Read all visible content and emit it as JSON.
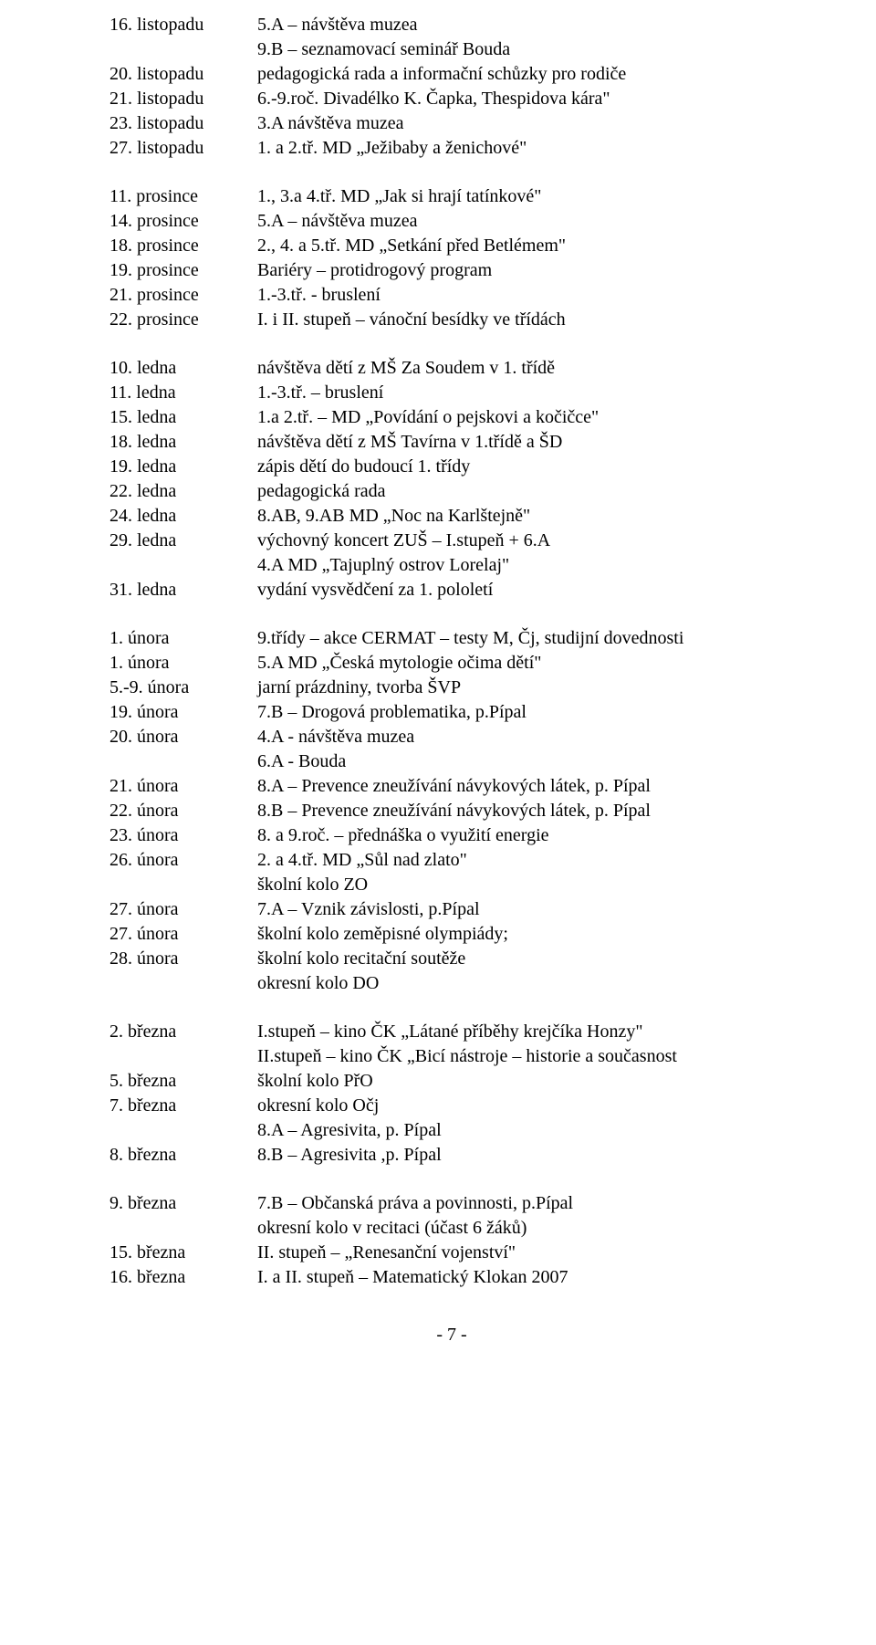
{
  "blocks": [
    {
      "rows": [
        {
          "date": "16. listopadu",
          "desc": "5.A – návštěva muzea"
        },
        {
          "date": "",
          "desc": "9.B – seznamovací seminář Bouda"
        },
        {
          "date": "20. listopadu",
          "desc": "pedagogická rada a informační schůzky pro rodiče"
        },
        {
          "date": "21. listopadu",
          "desc": "6.-9.roč. Divadélko K. Čapka, Thespidova kára\""
        },
        {
          "date": "23. listopadu",
          "desc": "3.A návštěva muzea"
        },
        {
          "date": "27. listopadu",
          "desc": "1. a 2.tř. MD „Ježibaby a ženichové\""
        }
      ]
    },
    {
      "rows": [
        {
          "date": "11. prosince",
          "desc": "1., 3.a 4.tř. MD „Jak si hrají tatínkové\""
        },
        {
          "date": "14. prosince",
          "desc": "5.A – návštěva muzea"
        },
        {
          "date": "18. prosince",
          "desc": "2., 4. a 5.tř. MD „Setkání před Betlémem\""
        },
        {
          "date": "19. prosince",
          "desc": "Bariéry – protidrogový program"
        },
        {
          "date": "21. prosince",
          "desc": "1.-3.tř. - bruslení"
        },
        {
          "date": "22. prosince",
          "desc": "I. i II. stupeň – vánoční besídky ve třídách"
        }
      ]
    },
    {
      "rows": [
        {
          "date": "10. ledna",
          "desc": "návštěva dětí z MŠ Za Soudem v 1. třídě"
        },
        {
          "date": "11. ledna",
          "desc": "1.-3.tř. – bruslení"
        },
        {
          "date": "15. ledna",
          "desc": "1.a 2.tř. – MD „Povídání o pejskovi a kočičce\""
        },
        {
          "date": "18. ledna",
          "desc": "návštěva dětí z MŠ Tavírna v 1.třídě a ŠD"
        },
        {
          "date": "19. ledna",
          "desc": "zápis dětí do budoucí 1. třídy"
        },
        {
          "date": "22. ledna",
          "desc": "pedagogická rada"
        },
        {
          "date": "24. ledna",
          "desc": "8.AB, 9.AB MD „Noc na Karlštejně\""
        },
        {
          "date": "29. ledna",
          "desc": "výchovný koncert ZUŠ – I.stupeň + 6.A"
        },
        {
          "date": "",
          "desc": "4.A MD „Tajuplný ostrov Lorelaj\""
        },
        {
          "date": "31. ledna",
          "desc": "vydání vysvědčení za 1. pololetí"
        }
      ]
    },
    {
      "rows": [
        {
          "date": "1. února",
          "desc": "9.třídy – akce CERMAT – testy M, Čj, studijní dovednosti"
        },
        {
          "date": "1. února",
          "desc": "5.A MD „Česká mytologie očima dětí\""
        },
        {
          "date": "5.-9. února",
          "desc": "jarní prázdniny, tvorba ŠVP"
        },
        {
          "date": "19. února",
          "desc": "7.B – Drogová problematika, p.Pípal"
        },
        {
          "date": "20. února",
          "desc": "4.A -  návštěva muzea"
        },
        {
          "date": "",
          "desc": "6.A - Bouda"
        },
        {
          "date": "21. února",
          "desc": "8.A – Prevence zneužívání návykových látek, p. Pípal"
        },
        {
          "date": "22. února",
          "desc": "8.B – Prevence zneužívání návykových látek, p. Pípal"
        },
        {
          "date": "23. února",
          "desc": "8. a 9.roč. – přednáška o využití energie"
        },
        {
          "date": "26. února",
          "desc": "2. a 4.tř. MD „Sůl nad zlato\""
        },
        {
          "date": "",
          "desc": "školní kolo ZO"
        },
        {
          "date": "27. února",
          "desc": "7.A – Vznik závislosti, p.Pípal"
        },
        {
          "date": "27. února",
          "desc": "školní kolo zeměpisné olympiády;"
        },
        {
          "date": "28. února",
          "desc": "školní kolo recitační soutěže"
        },
        {
          "date": "",
          "desc": "okresní kolo DO"
        }
      ]
    },
    {
      "rows": [
        {
          "date": "2. března",
          "desc": "I.stupeň – kino ČK „Látané příběhy krejčíka Honzy\""
        },
        {
          "date": "",
          "desc": "II.stupeň – kino ČK „Bicí nástroje – historie a současnost"
        },
        {
          "date": "5. března",
          "desc": "školní kolo PřO"
        },
        {
          "date": "7. března",
          "desc": "okresní kolo Očj"
        },
        {
          "date": "",
          "desc": "8.A – Agresivita, p. Pípal"
        },
        {
          "date": "8. března",
          "desc": "8.B – Agresivita ,p. Pípal"
        }
      ]
    },
    {
      "rows": [
        {
          "date": "9. března",
          "desc": "7.B – Občanská práva a povinnosti, p.Pípal"
        },
        {
          "date": "",
          "desc": "okresní kolo v recitaci (účast 6 žáků)"
        },
        {
          "date": "15. března",
          "desc": "II. stupeň – „Renesanční vojenství\""
        },
        {
          "date": "16. března",
          "desc": "I. a II. stupeň – Matematický Klokan 2007"
        }
      ]
    }
  ],
  "page_number": "- 7 -"
}
